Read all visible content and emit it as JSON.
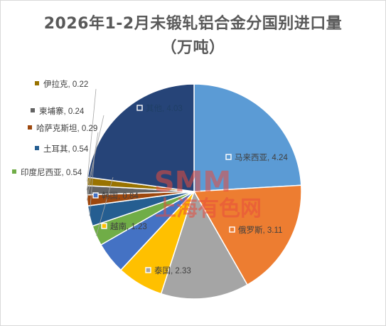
{
  "chart_data": {
    "type": "pie",
    "title": "2026年1-2月未锻轧铝合金分国别进口量",
    "subtitle": "（万吨）",
    "series": [
      {
        "name": "马来西亚",
        "value": 4.24,
        "color": "#5b9bd5",
        "label": "马来西亚, 4.24"
      },
      {
        "name": "俄罗斯",
        "value": 3.11,
        "color": "#ed7d31",
        "label": "俄罗斯, 3.11"
      },
      {
        "name": "泰国",
        "value": 2.33,
        "color": "#a5a5a5",
        "label": "泰国, 2.33"
      },
      {
        "name": "越南",
        "value": 1.23,
        "color": "#ffc000",
        "label": "越南, 1.23"
      },
      {
        "name": "韩国",
        "value": 0.84,
        "color": "#4472c4",
        "label": "韩国, 0.84"
      },
      {
        "name": "印度尼西亚",
        "value": 0.54,
        "color": "#70ad47",
        "label": "印度尼西亚, 0.54"
      },
      {
        "name": "土耳其",
        "value": 0.54,
        "color": "#255e91",
        "label": "土耳其, 0.54"
      },
      {
        "name": "哈萨克斯坦",
        "value": 0.29,
        "color": "#9e480e",
        "label": "哈萨克斯坦, 0.29"
      },
      {
        "name": "柬埔寨",
        "value": 0.24,
        "color": "#636363",
        "label": "柬埔寨, 0.24"
      },
      {
        "name": "伊拉克",
        "value": 0.22,
        "color": "#997300",
        "label": "伊拉克, 0.22"
      },
      {
        "name": "其他",
        "value": 4.03,
        "color": "#264478",
        "label": "其他, 4.03"
      }
    ]
  },
  "watermark": {
    "logo": "SMM",
    "text": "上海有色网"
  }
}
